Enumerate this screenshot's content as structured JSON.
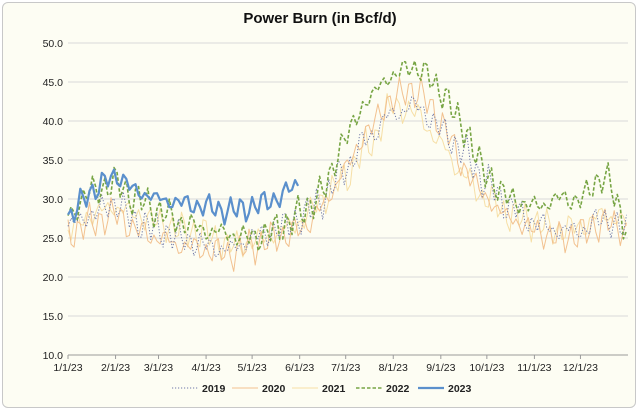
{
  "chart_data": {
    "type": "line",
    "title": "Power Burn (in Bcf/d)",
    "xlabel": "",
    "ylabel": "",
    "ylim": [
      10,
      50
    ],
    "yticks": [
      "10.0",
      "15.0",
      "20.0",
      "25.0",
      "30.0",
      "35.0",
      "40.0",
      "45.0",
      "50.0"
    ],
    "xticks": [
      "1/1/23",
      "2/1/23",
      "3/1/23",
      "4/1/23",
      "5/1/23",
      "6/1/23",
      "7/1/23",
      "8/1/23",
      "9/1/23",
      "10/1/23",
      "11/1/23",
      "12/1/23"
    ],
    "grid": "horizontal",
    "legend": "bottom",
    "x_anchor_days": [
      0,
      15,
      31,
      45,
      59,
      74,
      90,
      105,
      120,
      135,
      151,
      166,
      181,
      196,
      212,
      227,
      243,
      258,
      273,
      288,
      304,
      319,
      334,
      349,
      364
    ],
    "series": [
      {
        "name": "2019",
        "color": "#6f78a8",
        "style": "dotted",
        "values": [
          26.5,
          28,
          29.5,
          27,
          26,
          25,
          24,
          23.5,
          25,
          26,
          27.5,
          30,
          34,
          38,
          41,
          42,
          39,
          36,
          32,
          29,
          27,
          26,
          26,
          27.5,
          26
        ]
      },
      {
        "name": "2020",
        "color": "#f2c18f",
        "style": "solid",
        "values": [
          25.5,
          27,
          28,
          26,
          25,
          24,
          23.5,
          23,
          24,
          25,
          26,
          29,
          34,
          39,
          43,
          44,
          40,
          34,
          30,
          27.5,
          26,
          25,
          25.5,
          27,
          26
        ]
      },
      {
        "name": "2021",
        "color": "#f6dfa6",
        "style": "solid",
        "values": [
          26,
          28,
          29,
          28,
          27,
          26,
          25.5,
          24,
          24.5,
          25.5,
          27,
          30,
          33,
          37,
          42,
          41,
          37,
          33,
          30,
          28,
          27,
          26,
          26.5,
          28,
          27
        ]
      },
      {
        "name": "2022",
        "color": "#77a544",
        "style": "dashed",
        "values": [
          28,
          31,
          32,
          30,
          28.5,
          27,
          26,
          25.5,
          25,
          26,
          28,
          31,
          38,
          43,
          46,
          47,
          44,
          39,
          33,
          30,
          29,
          30,
          30,
          33,
          27
        ]
      },
      {
        "name": "2023",
        "color": "#5b90cc",
        "style": "solid",
        "values": [
          27.5,
          31,
          33,
          31,
          30,
          29.5,
          29,
          28.5,
          29,
          30,
          32
        ]
      }
    ]
  }
}
